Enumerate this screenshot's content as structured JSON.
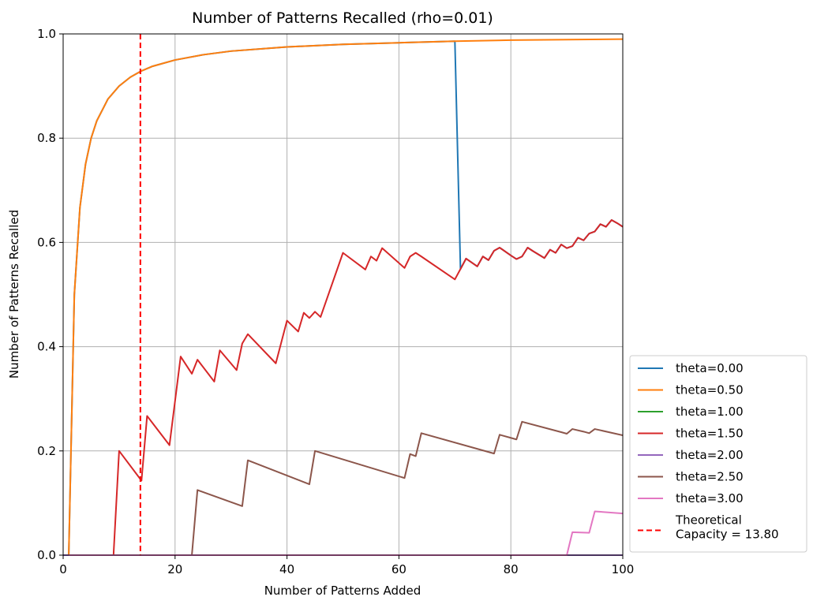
{
  "chart_data": {
    "type": "line",
    "title": "Number of Patterns Recalled (rho=0.01)",
    "xlabel": "Number of Patterns Added",
    "ylabel": "Number of Patterns Recalled",
    "xlim": [
      0,
      100
    ],
    "ylim": [
      0,
      1.0
    ],
    "xticks": [
      "0",
      "20",
      "40",
      "60",
      "80",
      "100"
    ],
    "yticks": [
      "0.0",
      "0.2",
      "0.4",
      "0.6",
      "0.8",
      "1.0"
    ],
    "grid": true,
    "legend_position": "outside-right-bottom",
    "series": [
      {
        "name": "theta=0.00",
        "color": "#1f77b4",
        "x": [
          1,
          2,
          3,
          4,
          5,
          6,
          8,
          10,
          12,
          14,
          16,
          20,
          25,
          30,
          40,
          50,
          60,
          70,
          71,
          72,
          74,
          75,
          76,
          77,
          78,
          80,
          81,
          82,
          83,
          84,
          86,
          87,
          88,
          89,
          90,
          91,
          92,
          93,
          94,
          95,
          96,
          97,
          98,
          99,
          100
        ],
        "y": [
          0.0,
          0.5,
          0.667,
          0.75,
          0.8,
          0.833,
          0.875,
          0.9,
          0.917,
          0.929,
          0.938,
          0.95,
          0.96,
          0.967,
          0.975,
          0.98,
          0.983,
          0.986,
          0.549,
          0.569,
          0.554,
          0.573,
          0.566,
          0.584,
          0.59,
          0.575,
          0.568,
          0.573,
          0.59,
          0.583,
          0.57,
          0.586,
          0.58,
          0.596,
          0.589,
          0.593,
          0.609,
          0.604,
          0.617,
          0.621,
          0.635,
          0.63,
          0.643,
          0.637,
          0.63
        ]
      },
      {
        "name": "theta=0.50",
        "color": "#ff7f0e",
        "x": [
          1,
          2,
          3,
          4,
          5,
          6,
          8,
          10,
          12,
          14,
          16,
          20,
          25,
          30,
          40,
          50,
          60,
          70,
          80,
          90,
          100
        ],
        "y": [
          0.0,
          0.5,
          0.667,
          0.75,
          0.8,
          0.833,
          0.875,
          0.9,
          0.917,
          0.929,
          0.938,
          0.95,
          0.96,
          0.967,
          0.975,
          0.98,
          0.983,
          0.986,
          0.988,
          0.989,
          0.99
        ]
      },
      {
        "name": "theta=1.00",
        "color": "#2ca02c",
        "x": [
          0,
          100
        ],
        "y": [
          0.0,
          0.0
        ]
      },
      {
        "name": "theta=1.50",
        "color": "#d62728",
        "x": [
          1,
          9,
          10,
          14,
          15,
          19,
          21,
          23,
          24,
          27,
          28,
          31,
          32,
          33,
          38,
          40,
          42,
          43,
          44,
          45,
          46,
          50,
          54,
          55,
          56,
          57,
          61,
          62,
          63,
          64,
          70,
          71,
          72,
          74,
          75,
          76,
          77,
          78,
          80,
          81,
          82,
          83,
          84,
          86,
          87,
          88,
          89,
          90,
          91,
          92,
          93,
          94,
          95,
          96,
          97,
          98,
          99,
          100
        ],
        "y": [
          0.0,
          0.0,
          0.2,
          0.143,
          0.267,
          0.211,
          0.381,
          0.348,
          0.375,
          0.333,
          0.393,
          0.355,
          0.406,
          0.424,
          0.368,
          0.45,
          0.429,
          0.465,
          0.455,
          0.467,
          0.457,
          0.58,
          0.548,
          0.573,
          0.565,
          0.589,
          0.551,
          0.573,
          0.58,
          0.573,
          0.529,
          0.549,
          0.569,
          0.554,
          0.573,
          0.566,
          0.584,
          0.59,
          0.575,
          0.568,
          0.573,
          0.59,
          0.583,
          0.57,
          0.586,
          0.58,
          0.596,
          0.589,
          0.593,
          0.609,
          0.604,
          0.617,
          0.621,
          0.635,
          0.63,
          0.643,
          0.637,
          0.63
        ]
      },
      {
        "name": "theta=2.00",
        "color": "#9467bd",
        "x": [
          0,
          100
        ],
        "y": [
          0.0,
          0.0
        ]
      },
      {
        "name": "theta=2.50",
        "color": "#8c564b",
        "x": [
          1,
          23,
          24,
          32,
          33,
          44,
          45,
          61,
          62,
          63,
          64,
          77,
          78,
          80,
          81,
          82,
          89,
          90,
          91,
          93,
          94,
          95,
          100
        ],
        "y": [
          0.0,
          0.0,
          0.125,
          0.094,
          0.182,
          0.136,
          0.2,
          0.148,
          0.194,
          0.19,
          0.234,
          0.195,
          0.231,
          0.225,
          0.222,
          0.256,
          0.236,
          0.233,
          0.242,
          0.237,
          0.234,
          0.242,
          0.23
        ]
      },
      {
        "name": "theta=3.00",
        "color": "#e377c2",
        "x": [
          1,
          90,
          91,
          94,
          95,
          100
        ],
        "y": [
          0.0,
          0.0,
          0.044,
          0.043,
          0.084,
          0.08
        ]
      }
    ],
    "reference_line": {
      "name": "Theoretical\nCapacity = 13.80",
      "label_line1": "Theoretical",
      "label_line2": "Capacity = 13.80",
      "x": 13.8,
      "color": "#ff0000",
      "style": "dashed"
    }
  }
}
